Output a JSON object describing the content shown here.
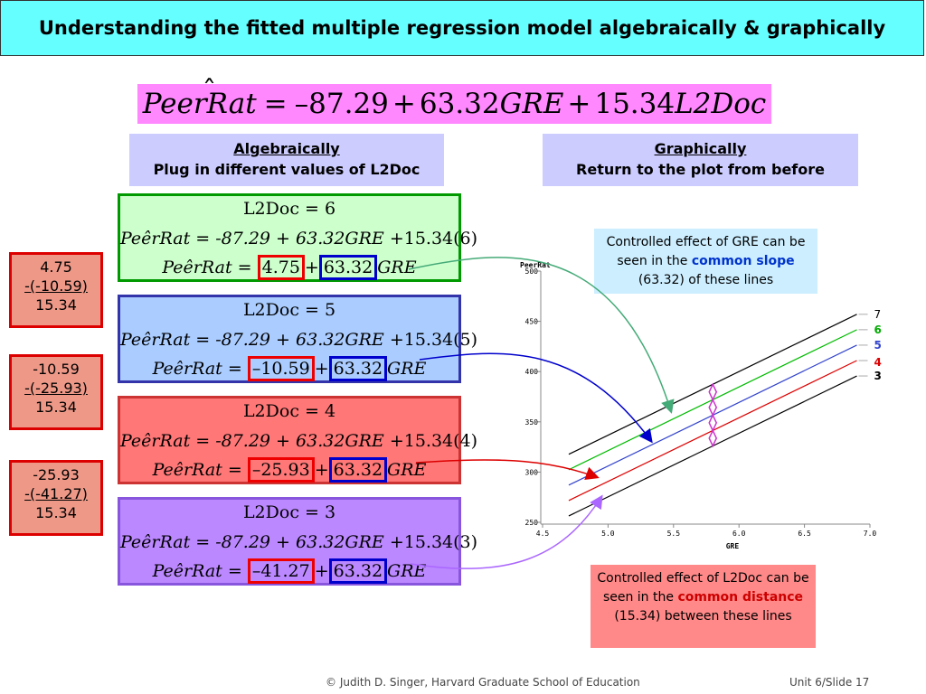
{
  "title": "Understanding the fitted multiple regression model algebraically & graphically",
  "main_equation": {
    "lhs": "PeerRat",
    "hat_char": "ˆ",
    "eq_sign": "=",
    "intercept": "–87.29",
    "plus": "+",
    "gre_coef": "63.32",
    "gre_var": "GRE",
    "plus2": "+",
    "l2doc_coef": "15.34",
    "l2doc_var": "L2Doc"
  },
  "headers": {
    "algebraically": {
      "title": "Algebraically",
      "subtitle": "Plug in different values of L2Doc"
    },
    "graphically": {
      "title": "Graphically",
      "subtitle": "Return to the plot from before"
    }
  },
  "panels": [
    {
      "l2doc_line": "L2Doc = 6",
      "full_line_pre": "PeêrRat = -87.29 + 63.32",
      "full_var": "GRE",
      "full_line_post": " +15.34(6)",
      "lhs": "PeêrRat",
      "eq": "=",
      "intercept": "4.75",
      "plus": "+",
      "slope": "63.32",
      "var": "GRE",
      "bg": "#ccffcc",
      "border": "#009900"
    },
    {
      "l2doc_line": "L2Doc = 5",
      "full_line_pre": "PeêrRat = -87.29 + 63.32",
      "full_var": "GRE",
      "full_line_post": " +15.34(5)",
      "lhs": "PeêrRat",
      "eq": "=",
      "intercept": "–10.59",
      "plus": "+",
      "slope": "63.32",
      "var": "GRE",
      "bg": "#aaccff",
      "border": "#3333aa"
    },
    {
      "l2doc_line": "L2Doc = 4",
      "full_line_pre": "PeêrRat = -87.29 + 63.32",
      "full_var": "GRE",
      "full_line_post": " +15.34(4)",
      "lhs": "PeêrRat",
      "eq": "=",
      "intercept": "–25.93",
      "plus": "+",
      "slope": "63.32",
      "var": "GRE",
      "bg": "#ff7777",
      "border": "#cc3333"
    },
    {
      "l2doc_line": "L2Doc = 3",
      "full_line_pre": "PeêrRat = -87.29 + 63.32",
      "full_var": "GRE",
      "full_line_post": " +15.34(3)",
      "lhs": "PeêrRat",
      "eq": "=",
      "intercept": "–41.27",
      "plus": "+",
      "slope": "63.32",
      "var": "GRE",
      "bg": "#bb88ff",
      "border": "#8855dd"
    }
  ],
  "side_boxes": [
    {
      "a": "4.75",
      "b": "-(-10.59)",
      "c": "15.34"
    },
    {
      "a": "-10.59",
      "b": "-(-25.93)",
      "c": "15.34"
    },
    {
      "a": "-25.93",
      "b": "-(-41.27)",
      "c": "15.34"
    }
  ],
  "notes": {
    "gre": {
      "pre": "Controlled effect of GRE can be seen in the ",
      "hl": "common slope",
      "post": " (63.32) of these lines",
      "hl_color": "#0033cc"
    },
    "l2doc": {
      "pre": "Controlled effect of L2Doc can be seen in the ",
      "hl": "common distance",
      "post": " (15.34) between these lines",
      "hl_color": "#cc0000"
    }
  },
  "colors": {
    "title_bg": "#66ffff",
    "equation_bg": "#ff88ff",
    "header_bg": "#ccccff",
    "note_gre_bg": "#cceeff",
    "note_l2doc_bg": "#ff8888"
  },
  "chart_data": {
    "type": "line",
    "ylabel": "PeerRat",
    "xlabel": "GRE",
    "xlim": [
      4.5,
      7.0
    ],
    "ylim": [
      250,
      500
    ],
    "x_ticks": [
      "4.5",
      "5.0",
      "5.5",
      "6.0",
      "6.5",
      "7.0"
    ],
    "y_ticks": [
      "250",
      "300",
      "350",
      "400",
      "450",
      "500"
    ],
    "x_tick_values": [
      4.5,
      5.0,
      5.5,
      6.0,
      6.5,
      7.0
    ],
    "y_tick_values": [
      250,
      300,
      350,
      400,
      450,
      500
    ],
    "gre_range": [
      4.7,
      6.9
    ],
    "series": [
      {
        "name": "7",
        "intercept": 20.09,
        "slope": 63.32,
        "color": "#000000"
      },
      {
        "name": "6",
        "intercept": 4.75,
        "slope": 63.32,
        "color": "#00bb00"
      },
      {
        "name": "5",
        "intercept": -10.59,
        "slope": 63.32,
        "color": "#3344cc"
      },
      {
        "name": "4",
        "intercept": -25.93,
        "slope": 63.32,
        "color": "#dd0000"
      },
      {
        "name": "3",
        "intercept": -41.27,
        "slope": 63.32,
        "color": "#000000"
      }
    ]
  },
  "footer": {
    "credit": "© Judith D. Singer, Harvard Graduate School of Education",
    "slide": "Unit 6/Slide 17"
  }
}
